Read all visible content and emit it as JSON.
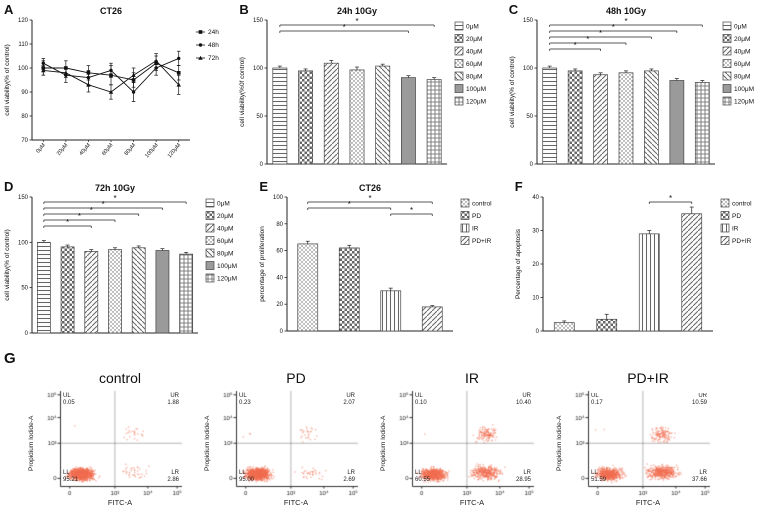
{
  "panel_labels": [
    "A",
    "B",
    "C",
    "D",
    "E",
    "F",
    "G"
  ],
  "colors": {
    "flow_points": "#f37052",
    "axis": "#222222",
    "hatch": "#666666"
  },
  "chart_data": [
    {
      "id": "A",
      "type": "line",
      "title": "CT26",
      "ylabel": "cell viability(% of control)",
      "ylim": [
        70,
        120
      ],
      "yticks": [
        70,
        80,
        90,
        100,
        110,
        120
      ],
      "categories": [
        "0μM",
        "20μM",
        "40μM",
        "60μM",
        "80μM",
        "100μM",
        "120μM"
      ],
      "series": [
        {
          "name": "24h",
          "marker": "square",
          "values": [
            100,
            100,
            98,
            97,
            95,
            102,
            98
          ],
          "errors": [
            3,
            3,
            3,
            4,
            3,
            3,
            3
          ]
        },
        {
          "name": "48h",
          "marker": "circle",
          "values": [
            102,
            97,
            96,
            99,
            90,
            100,
            104
          ],
          "errors": [
            2,
            3,
            3,
            3,
            4,
            3,
            3
          ]
        },
        {
          "name": "72h",
          "marker": "triangle",
          "values": [
            99,
            98,
            93,
            90,
            97,
            103,
            93
          ],
          "errors": [
            2,
            2,
            3,
            3,
            3,
            3,
            4
          ]
        }
      ],
      "legend_position": "right"
    },
    {
      "id": "B",
      "type": "bar",
      "title": "24h 10Gy",
      "ylabel": "cell viability(%0f control)",
      "ylim": [
        0,
        150
      ],
      "yticks": [
        0,
        50,
        100,
        150
      ],
      "categories": [
        "0μM",
        "20μM",
        "40μM",
        "60μM",
        "80μM",
        "100μM",
        "120μM"
      ],
      "values": [
        100,
        97,
        105,
        98,
        102,
        90,
        88
      ],
      "errors": [
        2,
        2,
        3,
        3,
        2,
        2,
        2
      ],
      "patterns": [
        "hlines",
        "checker",
        "diag",
        "dots",
        "diag2",
        "solid",
        "grid"
      ],
      "brackets": [
        {
          "from": 0,
          "to": 6,
          "label": "*"
        },
        {
          "from": 0,
          "to": 5,
          "label": "*"
        }
      ],
      "legend_position": "right"
    },
    {
      "id": "C",
      "type": "bar",
      "title": "48h 10Gy",
      "ylabel": "cell viability(% of control)",
      "ylim": [
        0,
        150
      ],
      "yticks": [
        0,
        50,
        100,
        150
      ],
      "categories": [
        "0μM",
        "20μM",
        "40μM",
        "60μM",
        "80μM",
        "100μM",
        "120μM"
      ],
      "values": [
        100,
        97,
        93,
        95,
        97,
        87,
        85
      ],
      "errors": [
        2,
        2,
        2,
        2,
        2,
        2,
        2
      ],
      "patterns": [
        "hlines",
        "checker",
        "diag",
        "dots",
        "diag2",
        "solid",
        "grid"
      ],
      "brackets": [
        {
          "from": 0,
          "to": 6,
          "label": "*"
        },
        {
          "from": 0,
          "to": 5,
          "label": "*"
        },
        {
          "from": 0,
          "to": 4,
          "label": "*"
        },
        {
          "from": 0,
          "to": 3,
          "label": "*"
        },
        {
          "from": 0,
          "to": 2,
          "label": "*"
        }
      ],
      "legend_position": "right"
    },
    {
      "id": "D",
      "type": "bar",
      "title": "72h 10Gy",
      "ylabel": "cell viability(% of control)",
      "ylim": [
        0,
        150
      ],
      "yticks": [
        0,
        50,
        100,
        150
      ],
      "categories": [
        "0μM",
        "20μM",
        "40μM",
        "60μM",
        "80μM",
        "100μM",
        "120μM"
      ],
      "values": [
        100,
        95,
        90,
        92,
        94,
        91,
        87
      ],
      "errors": [
        2,
        2,
        2,
        2,
        2,
        2,
        2
      ],
      "patterns": [
        "hlines",
        "checker",
        "diag",
        "dots",
        "diag2",
        "solid",
        "grid"
      ],
      "brackets": [
        {
          "from": 0,
          "to": 6,
          "label": "*"
        },
        {
          "from": 0,
          "to": 5,
          "label": "*"
        },
        {
          "from": 0,
          "to": 4,
          "label": "*"
        },
        {
          "from": 0,
          "to": 3,
          "label": "*"
        },
        {
          "from": 0,
          "to": 2,
          "label": "*"
        }
      ],
      "legend_position": "right"
    },
    {
      "id": "E",
      "type": "bar",
      "title": "CT26",
      "ylabel": "percentage of proliferation",
      "ylim": [
        0,
        100
      ],
      "yticks": [
        0,
        20,
        40,
        60,
        80,
        100
      ],
      "categories": [
        "control",
        "PD",
        "IR",
        "PD+IR"
      ],
      "values": [
        65,
        62,
        30,
        18
      ],
      "errors": [
        2,
        2,
        2,
        1
      ],
      "patterns": [
        "dots",
        "checker",
        "vlines",
        "diag"
      ],
      "brackets": [
        {
          "from": 0,
          "to": 3,
          "label": "*"
        },
        {
          "from": 0,
          "to": 2,
          "label": "*"
        },
        {
          "from": 2,
          "to": 3,
          "label": "*"
        }
      ],
      "legend_position": "right"
    },
    {
      "id": "F",
      "type": "bar",
      "title": "",
      "ylabel": "Percentage of apoptosis",
      "ylim": [
        0,
        40
      ],
      "yticks": [
        0,
        10,
        20,
        30,
        40
      ],
      "categories": [
        "control",
        "PD",
        "IR",
        "PD+IR"
      ],
      "values": [
        2.5,
        3.5,
        29,
        35
      ],
      "errors": [
        0.5,
        1.5,
        1,
        2
      ],
      "patterns": [
        "dots",
        "checker",
        "vlines",
        "diag"
      ],
      "brackets": [
        {
          "from": 2,
          "to": 3,
          "label": "*"
        }
      ],
      "legend_position": "right"
    },
    {
      "id": "G1",
      "type": "flow-scatter",
      "title": "control",
      "xlabel": "FITC-A",
      "ylabel": "Propidium Iodide-A",
      "xticks": [
        "0",
        "10³",
        "10⁴",
        "10⁵"
      ],
      "yticks": [
        "0",
        "10³",
        "10⁴",
        "10⁵"
      ],
      "quads": [
        {
          "code": "UL",
          "value": "0.05"
        },
        {
          "code": "UR",
          "value": "1.88"
        },
        {
          "code": "LL",
          "value": "95.21"
        },
        {
          "code": "LR",
          "value": "2.86"
        }
      ]
    },
    {
      "id": "G2",
      "type": "flow-scatter",
      "title": "PD",
      "xlabel": "FITC-A",
      "ylabel": "Propidium Iodide-A",
      "xticks": [
        "0",
        "10³",
        "10⁴",
        "10⁵"
      ],
      "yticks": [
        "0",
        "10³",
        "10⁴",
        "10⁵"
      ],
      "quads": [
        {
          "code": "UL",
          "value": "0.23"
        },
        {
          "code": "UR",
          "value": "2.07"
        },
        {
          "code": "LL",
          "value": "95.00"
        },
        {
          "code": "LR",
          "value": "2.69"
        }
      ]
    },
    {
      "id": "G3",
      "type": "flow-scatter",
      "title": "IR",
      "xlabel": "FITC-A",
      "ylabel": "Propidium Iodide-A",
      "xticks": [
        "0",
        "10³",
        "10⁴",
        "10⁵"
      ],
      "yticks": [
        "0",
        "10³",
        "10⁴",
        "10⁵"
      ],
      "quads": [
        {
          "code": "UL",
          "value": "0.10"
        },
        {
          "code": "UR",
          "value": "10.40"
        },
        {
          "code": "LL",
          "value": "60.55"
        },
        {
          "code": "LR",
          "value": "28.95"
        }
      ]
    },
    {
      "id": "G4",
      "type": "flow-scatter",
      "title": "PD+IR",
      "xlabel": "FITC-A",
      "ylabel": "Propidium Iodide-A",
      "xticks": [
        "0",
        "10³",
        "10⁴",
        "10⁵"
      ],
      "yticks": [
        "0",
        "10³",
        "10⁴",
        "10⁵"
      ],
      "quads": [
        {
          "code": "UL",
          "value": "0.17"
        },
        {
          "code": "UR",
          "value": "10.59"
        },
        {
          "code": "LL",
          "value": "51.59"
        },
        {
          "code": "LR",
          "value": "37.66"
        }
      ]
    }
  ]
}
